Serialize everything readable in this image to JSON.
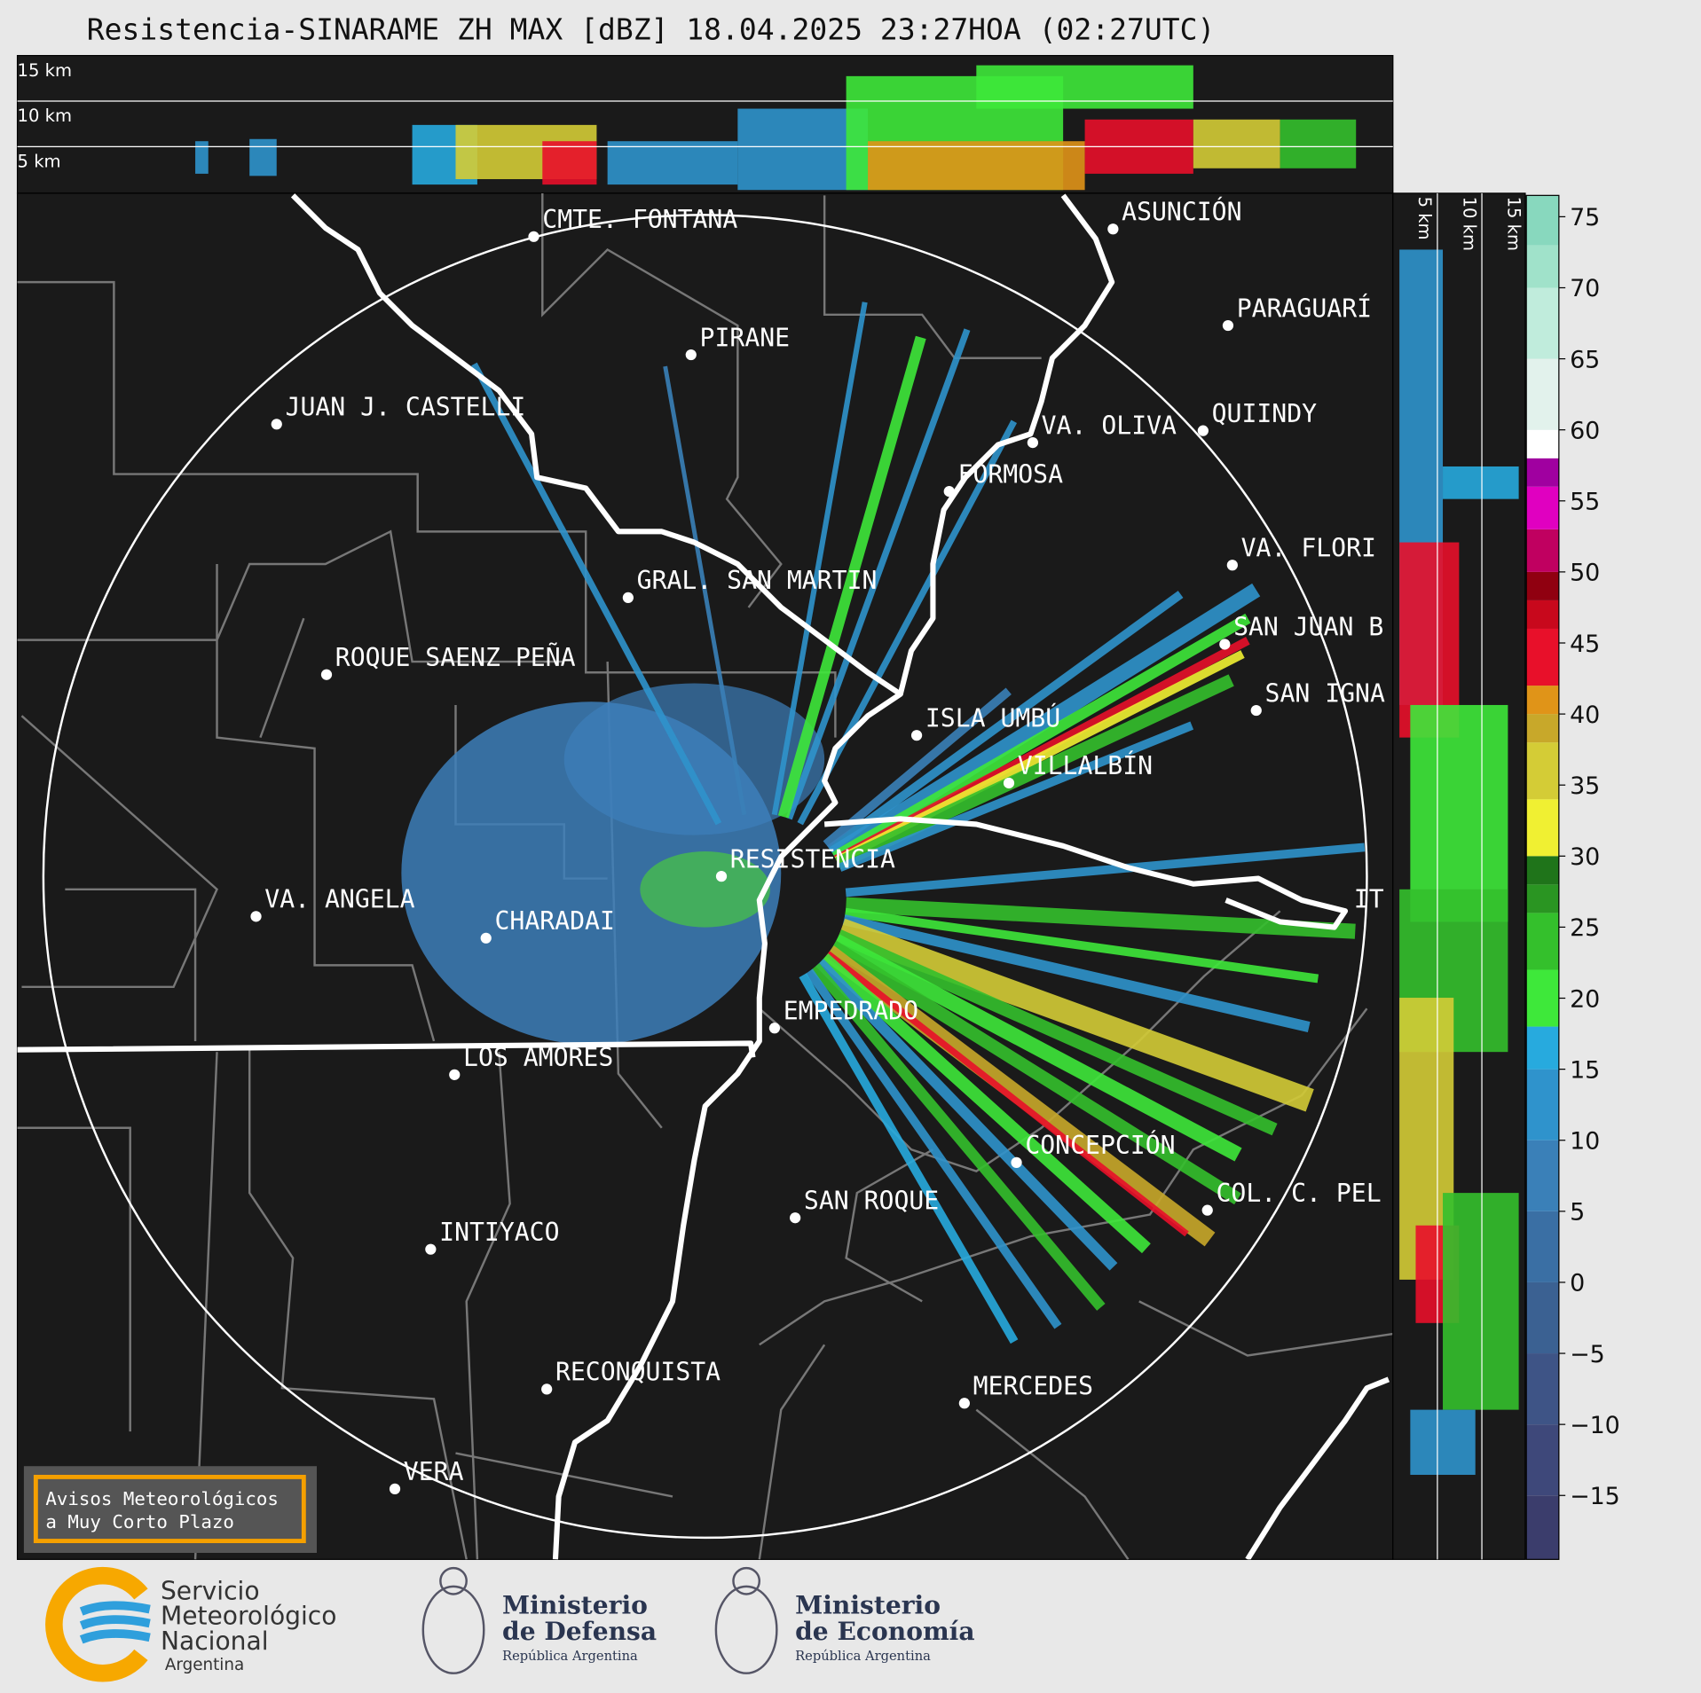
{
  "title": "Resistencia-SINARAME ZH MAX [dBZ] 18.04.2025 23:27HOA (02:27UTC)",
  "top_panel": {
    "labels": [
      "15 km",
      "10 km",
      "5 km"
    ]
  },
  "side_panel": {
    "labels": [
      "5 km",
      "10 km",
      "15 km"
    ]
  },
  "cities": [
    "CMTE. FONTANA",
    "PIRANE",
    "JUAN J. CASTELLI",
    "VA. OLIVA",
    "FORMOSA",
    "QUIINDY",
    "ASUNCIÓN",
    "PARAGUARÍ",
    "VA. FLORI",
    "SAN JUAN B",
    "SAN IGNA",
    "GRAL. SAN MARTIN",
    "ROQUE SAENZ PEÑA",
    "ISLA UMBÚ",
    "VILLALBÍN",
    "RESISTENCIA",
    "IT",
    "VA. ANGELA",
    "CHARADAI",
    "EMPEDRADO",
    "LOS AMORES",
    "CONCEPCIÓN",
    "COL. C. PEL",
    "SAN ROQUE",
    "INTIYACO",
    "RECONQUISTA",
    "MERCEDES",
    "VERA"
  ],
  "colorbar": {
    "clim": [
      -19.5,
      76.5
    ],
    "ticks": [
      75,
      70,
      65,
      60,
      55,
      50,
      45,
      40,
      35,
      30,
      25,
      20,
      15,
      10,
      5,
      0,
      {
        "value": -5,
        "label": "−5"
      },
      {
        "value": -10,
        "label": "−10"
      },
      {
        "value": -15,
        "label": "−15"
      }
    ],
    "bands": [
      {
        "from": -19.5,
        "color": "#3b3d6c"
      },
      {
        "from": -15,
        "color": "#3e487a"
      },
      {
        "from": -10,
        "color": "#3e5486"
      },
      {
        "from": -5,
        "color": "#3b6192"
      },
      {
        "from": 0,
        "color": "#3a6fa4"
      },
      {
        "from": 5,
        "color": "#3a80b8"
      },
      {
        "from": 10,
        "color": "#2f93cc"
      },
      {
        "from": 15,
        "color": "#27aade"
      },
      {
        "from": 18,
        "color": "#3ee83a"
      },
      {
        "from": 22,
        "color": "#34c02c"
      },
      {
        "from": 26,
        "color": "#2a9522"
      },
      {
        "from": 28,
        "color": "#1f741a"
      },
      {
        "from": 30,
        "color": "#f0f032"
      },
      {
        "from": 34,
        "color": "#d4cc36"
      },
      {
        "from": 38,
        "color": "#c8a82a"
      },
      {
        "from": 40,
        "color": "#e09418"
      },
      {
        "from": 42,
        "color": "#e8102a"
      },
      {
        "from": 46,
        "color": "#c8081c"
      },
      {
        "from": 48,
        "color": "#900010"
      },
      {
        "from": 50,
        "color": "#c00060"
      },
      {
        "from": 53,
        "color": "#e000c0"
      },
      {
        "from": 56,
        "color": "#a000a0"
      },
      {
        "from": 58,
        "color": "#ffffff"
      },
      {
        "from": 60,
        "color": "#e2f2ec"
      },
      {
        "from": 65,
        "color": "#c0ecdc"
      },
      {
        "from": 70,
        "color": "#a0e2ca"
      },
      {
        "from": 73,
        "color": "#88d8be"
      }
    ]
  },
  "notice": [
    "Avisos Meteorológicos",
    "a Muy Corto Plazo"
  ],
  "logos": {
    "smn": [
      "Servicio",
      "Meteorológico",
      "Nacional",
      "Argentina"
    ],
    "defensa": [
      "Ministerio",
      "de Defensa",
      "República Argentina"
    ],
    "economia": [
      "Ministerio",
      "de Economía",
      "República Argentina"
    ]
  }
}
